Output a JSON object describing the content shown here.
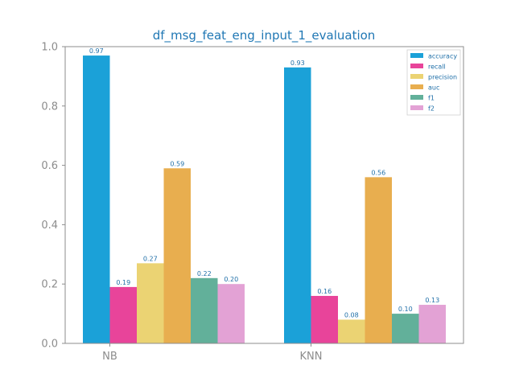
{
  "chart_data": {
    "type": "bar",
    "title": "df_msg_feat_eng_input_1_evaluation",
    "xlabel": "",
    "ylabel": "",
    "categories": [
      "NB",
      "KNN"
    ],
    "ylim": [
      0,
      1.0
    ],
    "yticks": [
      "0.0",
      "0.2",
      "0.4",
      "0.6",
      "0.8",
      "1.0"
    ],
    "grid": false,
    "legend_position": "top-right",
    "series": [
      {
        "name": "accuracy",
        "values": [
          0.97,
          0.93
        ],
        "labels": [
          "0.97",
          "0.93"
        ],
        "color": "#1ba1d8"
      },
      {
        "name": "recall",
        "values": [
          0.19,
          0.16
        ],
        "labels": [
          "0.19",
          "0.16"
        ],
        "color": "#e8449a"
      },
      {
        "name": "precision",
        "values": [
          0.27,
          0.08
        ],
        "labels": [
          "0.27",
          "0.08"
        ],
        "color": "#ebd373"
      },
      {
        "name": "auc",
        "values": [
          0.59,
          0.56
        ],
        "labels": [
          "0.59",
          "0.56"
        ],
        "color": "#e8ae4f"
      },
      {
        "name": "f1",
        "values": [
          0.22,
          0.1
        ],
        "labels": [
          "0.22",
          "0.10"
        ],
        "color": "#62b09a"
      },
      {
        "name": "f2",
        "values": [
          0.2,
          0.13
        ],
        "labels": [
          "0.20",
          "0.13"
        ],
        "color": "#e3a2d5"
      }
    ],
    "colors": {
      "title": "#1f77b4",
      "data_label": "#1f6fa8",
      "legend_text": "#1f6fa8",
      "axis": "#8c8c8c"
    }
  }
}
